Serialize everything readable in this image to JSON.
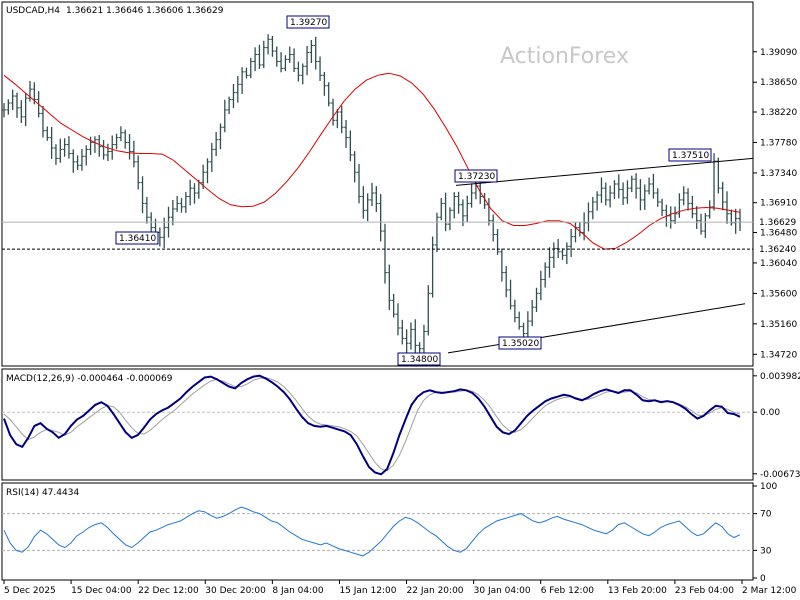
{
  "header": {
    "symbol_timeframe": "USDCAD,H4",
    "ohlc": "1.36621 1.36646 1.36606 1.36629"
  },
  "watermark": "ActionForex",
  "chart_data": [
    {
      "type": "ohlc",
      "x_tick_labels": [
        "5 Dec 2025",
        "15 Dec 04:00",
        "22 Dec 12:00",
        "30 Dec 20:00",
        "8 Jan 04:00",
        "15 Jan 12:00",
        "22 Jan 20:00",
        "30 Jan 04:00",
        "6 Feb 12:00",
        "13 Feb 20:00",
        "23 Feb 04:00",
        "2 Mar 12:00"
      ],
      "y_tick_labels": [
        "1.39090",
        "1.38650",
        "1.38220",
        "1.37780",
        "1.37340",
        "1.36910",
        "1.36480",
        "1.36040",
        "1.35600",
        "1.35160",
        "1.34720"
      ],
      "ylim": [
        1.3458,
        1.3978
      ],
      "current_price": "1.36629",
      "support_line": "1.36240",
      "annotations": [
        {
          "label": "1.39270",
          "price": 1.3927
        },
        {
          "label": "1.36410",
          "price": 1.3641
        },
        {
          "label": "1.37230",
          "price": 1.3723
        },
        {
          "label": "1.37510",
          "price": 1.3751
        },
        {
          "label": "1.34800",
          "price": 1.348
        },
        {
          "label": "1.35020",
          "price": 1.3502
        }
      ],
      "moving_average_color": "#e00000",
      "price_color": "#2f4f4f",
      "closes": [
        1.3825,
        1.3835,
        1.3845,
        1.3828,
        1.3815,
        1.3842,
        1.3855,
        1.384,
        1.382,
        1.3795,
        1.3785,
        1.377,
        1.3755,
        1.3768,
        1.3775,
        1.3762,
        1.375,
        1.3745,
        1.3758,
        1.3768,
        1.3778,
        1.3782,
        1.3772,
        1.376,
        1.3765,
        1.3775,
        1.3785,
        1.3792,
        1.3778,
        1.3765,
        1.375,
        1.372,
        1.369,
        1.367,
        1.3655,
        1.3648,
        1.3641,
        1.3655,
        1.367,
        1.3682,
        1.369,
        1.3685,
        1.37,
        1.3712,
        1.3705,
        1.372,
        1.3735,
        1.375,
        1.3768,
        1.3782,
        1.38,
        1.3825,
        1.384,
        1.385,
        1.3862,
        1.388,
        1.3875,
        1.3895,
        1.3905,
        1.389,
        1.3915,
        1.3927,
        1.391,
        1.3895,
        1.3885,
        1.3898,
        1.3905,
        1.3885,
        1.3875,
        1.3888,
        1.3908,
        1.3918,
        1.3895,
        1.3875,
        1.386,
        1.3835,
        1.381,
        1.3822,
        1.38,
        1.3785,
        1.376,
        1.3735,
        1.37,
        1.368,
        1.3695,
        1.3705,
        1.369,
        1.365,
        1.359,
        1.355,
        1.353,
        1.351,
        1.3495,
        1.3488,
        1.3508,
        1.3485,
        1.348,
        1.3505,
        1.356,
        1.363,
        1.367,
        1.369,
        1.366,
        1.368,
        1.37,
        1.3688,
        1.3672,
        1.369,
        1.3705,
        1.3715,
        1.37,
        1.3688,
        1.3665,
        1.3645,
        1.362,
        1.359,
        1.3565,
        1.3542,
        1.3525,
        1.3512,
        1.3502,
        1.352,
        1.354,
        1.356,
        1.358,
        1.3598,
        1.3612,
        1.3625,
        1.362,
        1.3615,
        1.3628,
        1.3642,
        1.3655,
        1.3648,
        1.3662,
        1.3678,
        1.3692,
        1.3702,
        1.3712,
        1.3695,
        1.3705,
        1.3718,
        1.371,
        1.3698,
        1.3712,
        1.3725,
        1.3712,
        1.3695,
        1.3708,
        1.3718,
        1.3705,
        1.3692,
        1.368,
        1.3672,
        1.3665,
        1.3675,
        1.3695,
        1.3705,
        1.369,
        1.3675,
        1.3665,
        1.365,
        1.3672,
        1.3685,
        1.3751,
        1.3712,
        1.3692,
        1.3675,
        1.3662,
        1.3668,
        1.3663
      ],
      "ma_values": [
        1.3875,
        1.3862,
        1.3848,
        1.3834,
        1.382,
        1.3806,
        1.3796,
        1.3786,
        1.3778,
        1.3771,
        1.3766,
        1.3763,
        1.3762,
        1.3762,
        1.3761,
        1.3752,
        1.3738,
        1.3724,
        1.371,
        1.3697,
        1.3688,
        1.3685,
        1.3686,
        1.3692,
        1.3705,
        1.3722,
        1.3742,
        1.3765,
        1.379,
        1.3814,
        1.3837,
        1.3855,
        1.3868,
        1.3875,
        1.3878,
        1.3874,
        1.3864,
        1.3848,
        1.3826,
        1.38,
        1.3772,
        1.374,
        1.3708,
        1.3682,
        1.3665,
        1.3658,
        1.3658,
        1.3661,
        1.3665,
        1.3665,
        1.3661,
        1.3648,
        1.3633,
        1.3624,
        1.3625,
        1.3634,
        1.3645,
        1.3658,
        1.3668,
        1.3675,
        1.368,
        1.3683,
        1.3684,
        1.3683,
        1.368,
        1.3677
      ],
      "ma_x_start": 4,
      "ma_x_end": 740,
      "candles_x_start": 4,
      "candles_x_end": 740
    },
    {
      "type": "line",
      "title": "MACD(12,26,9) -0.000464 -0.000069",
      "y_tick_labels": [
        "0.003982",
        "0.00",
        "-0.006737"
      ],
      "ylim": [
        -0.0072,
        0.0044
      ],
      "series": [
        {
          "role": "macd",
          "color": "#000080",
          "values": [
            -0.0007,
            -0.0025,
            -0.0035,
            -0.0038,
            -0.0028,
            -0.0015,
            -0.0012,
            -0.0018,
            -0.0022,
            -0.0028,
            -0.0024,
            -0.0015,
            -0.0008,
            -0.0004,
            0.0002,
            0.0008,
            0.0011,
            0.0007,
            -0.0002,
            -0.0012,
            -0.0022,
            -0.0028,
            -0.0025,
            -0.0017,
            -0.0008,
            -0.0002,
            0.0002,
            0.0005,
            0.001,
            0.0015,
            0.0022,
            0.0028,
            0.0033,
            0.0038,
            0.0039,
            0.0036,
            0.0032,
            0.0028,
            0.0026,
            0.0032,
            0.0036,
            0.0039,
            0.004,
            0.0037,
            0.0033,
            0.0028,
            0.0022,
            0.0014,
            0.0004,
            -0.0005,
            -0.0012,
            -0.0015,
            -0.0016,
            -0.0015,
            -0.0017,
            -0.0019,
            -0.0021,
            -0.0025,
            -0.0035,
            -0.0048,
            -0.006,
            -0.0066,
            -0.0068,
            -0.0062,
            -0.0045,
            -0.0025,
            -0.0008,
            0.0008,
            0.0017,
            0.0022,
            0.0024,
            0.0022,
            0.0021,
            0.0022,
            0.0023,
            0.0025,
            0.0024,
            0.0021,
            0.0015,
            0.0006,
            -0.0005,
            -0.0016,
            -0.0022,
            -0.0024,
            -0.002,
            -0.0012,
            -0.0004,
            0.0002,
            0.0007,
            0.0012,
            0.0015,
            0.0017,
            0.0019,
            0.0018,
            0.0015,
            0.0013,
            0.0016,
            0.002,
            0.0023,
            0.0025,
            0.0023,
            0.0021,
            0.0024,
            0.0024,
            0.0019,
            0.0013,
            0.0012,
            0.0013,
            0.0011,
            0.0012,
            0.0011,
            0.0008,
            0.0004,
            -0.0002,
            -0.0007,
            -0.0004,
            0.0002,
            0.0007,
            0.0006,
            -0.0001,
            -0.0002,
            -0.0005
          ]
        },
        {
          "role": "signal",
          "color": "#a0a0a0",
          "values": [
            -0.0002,
            -0.0008,
            -0.0016,
            -0.0024,
            -0.003,
            -0.0027,
            -0.0022,
            -0.0019,
            -0.002,
            -0.0022,
            -0.0025,
            -0.0022,
            -0.0016,
            -0.0011,
            -0.0006,
            -0.0001,
            0.0004,
            0.0007,
            0.0006,
            0.0,
            -0.0009,
            -0.0017,
            -0.0023,
            -0.0024,
            -0.002,
            -0.0014,
            -0.0008,
            -0.0003,
            0.0002,
            0.0008,
            0.0014,
            0.002,
            0.0025,
            0.003,
            0.0034,
            0.0036,
            0.0034,
            0.0031,
            0.0028,
            0.0028,
            0.0031,
            0.0035,
            0.0037,
            0.0038,
            0.0036,
            0.0033,
            0.0028,
            0.0021,
            0.0013,
            0.0004,
            -0.0004,
            -0.001,
            -0.0013,
            -0.0014,
            -0.0015,
            -0.0016,
            -0.0018,
            -0.0021,
            -0.0026,
            -0.0035,
            -0.0045,
            -0.0055,
            -0.0062,
            -0.0064,
            -0.0058,
            -0.0047,
            -0.0032,
            -0.0015,
            0.0002,
            0.0013,
            0.0019,
            0.0022,
            0.0022,
            0.0022,
            0.0022,
            0.0023,
            0.0024,
            0.0023,
            0.0019,
            0.0013,
            0.0005,
            -0.0005,
            -0.0014,
            -0.002,
            -0.0022,
            -0.0019,
            -0.0013,
            -0.0006,
            0.0001,
            0.0007,
            0.0011,
            0.0014,
            0.0016,
            0.0017,
            0.0016,
            0.0014,
            0.0014,
            0.0016,
            0.0019,
            0.0022,
            0.0023,
            0.0022,
            0.0022,
            0.0023,
            0.0021,
            0.0017,
            0.0014,
            0.0013,
            0.0012,
            0.0012,
            0.0011,
            0.0009,
            0.0006,
            0.0002,
            -0.0003,
            -0.0004,
            -0.0001,
            0.0003,
            0.0005,
            0.0003,
            0.0,
            -0.0002
          ]
        }
      ]
    },
    {
      "type": "line",
      "title": "RSI(14) 47.4434",
      "y_tick_labels": [
        "100",
        "70",
        "30",
        "0"
      ],
      "ylim": [
        0,
        100
      ],
      "levels": [
        70,
        30
      ],
      "series": [
        {
          "role": "rsi",
          "color": "#1e78d8",
          "values": [
            52,
            38,
            30,
            28,
            34,
            45,
            52,
            48,
            42,
            36,
            33,
            38,
            46,
            50,
            55,
            58,
            60,
            55,
            48,
            42,
            36,
            33,
            38,
            44,
            50,
            52,
            55,
            58,
            60,
            62,
            66,
            70,
            73,
            72,
            68,
            65,
            67,
            70,
            74,
            77,
            75,
            72,
            70,
            66,
            62,
            60,
            55,
            50,
            46,
            42,
            40,
            38,
            36,
            38,
            35,
            32,
            30,
            28,
            26,
            24,
            28,
            34,
            40,
            48,
            56,
            62,
            66,
            64,
            60,
            55,
            50,
            46,
            40,
            34,
            30,
            28,
            32,
            40,
            48,
            54,
            58,
            62,
            64,
            66,
            68,
            70,
            66,
            62,
            60,
            62,
            65,
            67,
            64,
            62,
            60,
            58,
            55,
            52,
            50,
            48,
            52,
            58,
            60,
            56,
            52,
            48,
            46,
            50,
            55,
            58,
            60,
            62,
            56,
            50,
            46,
            48,
            54,
            60,
            56,
            48,
            44,
            47
          ]
        }
      ]
    }
  ]
}
